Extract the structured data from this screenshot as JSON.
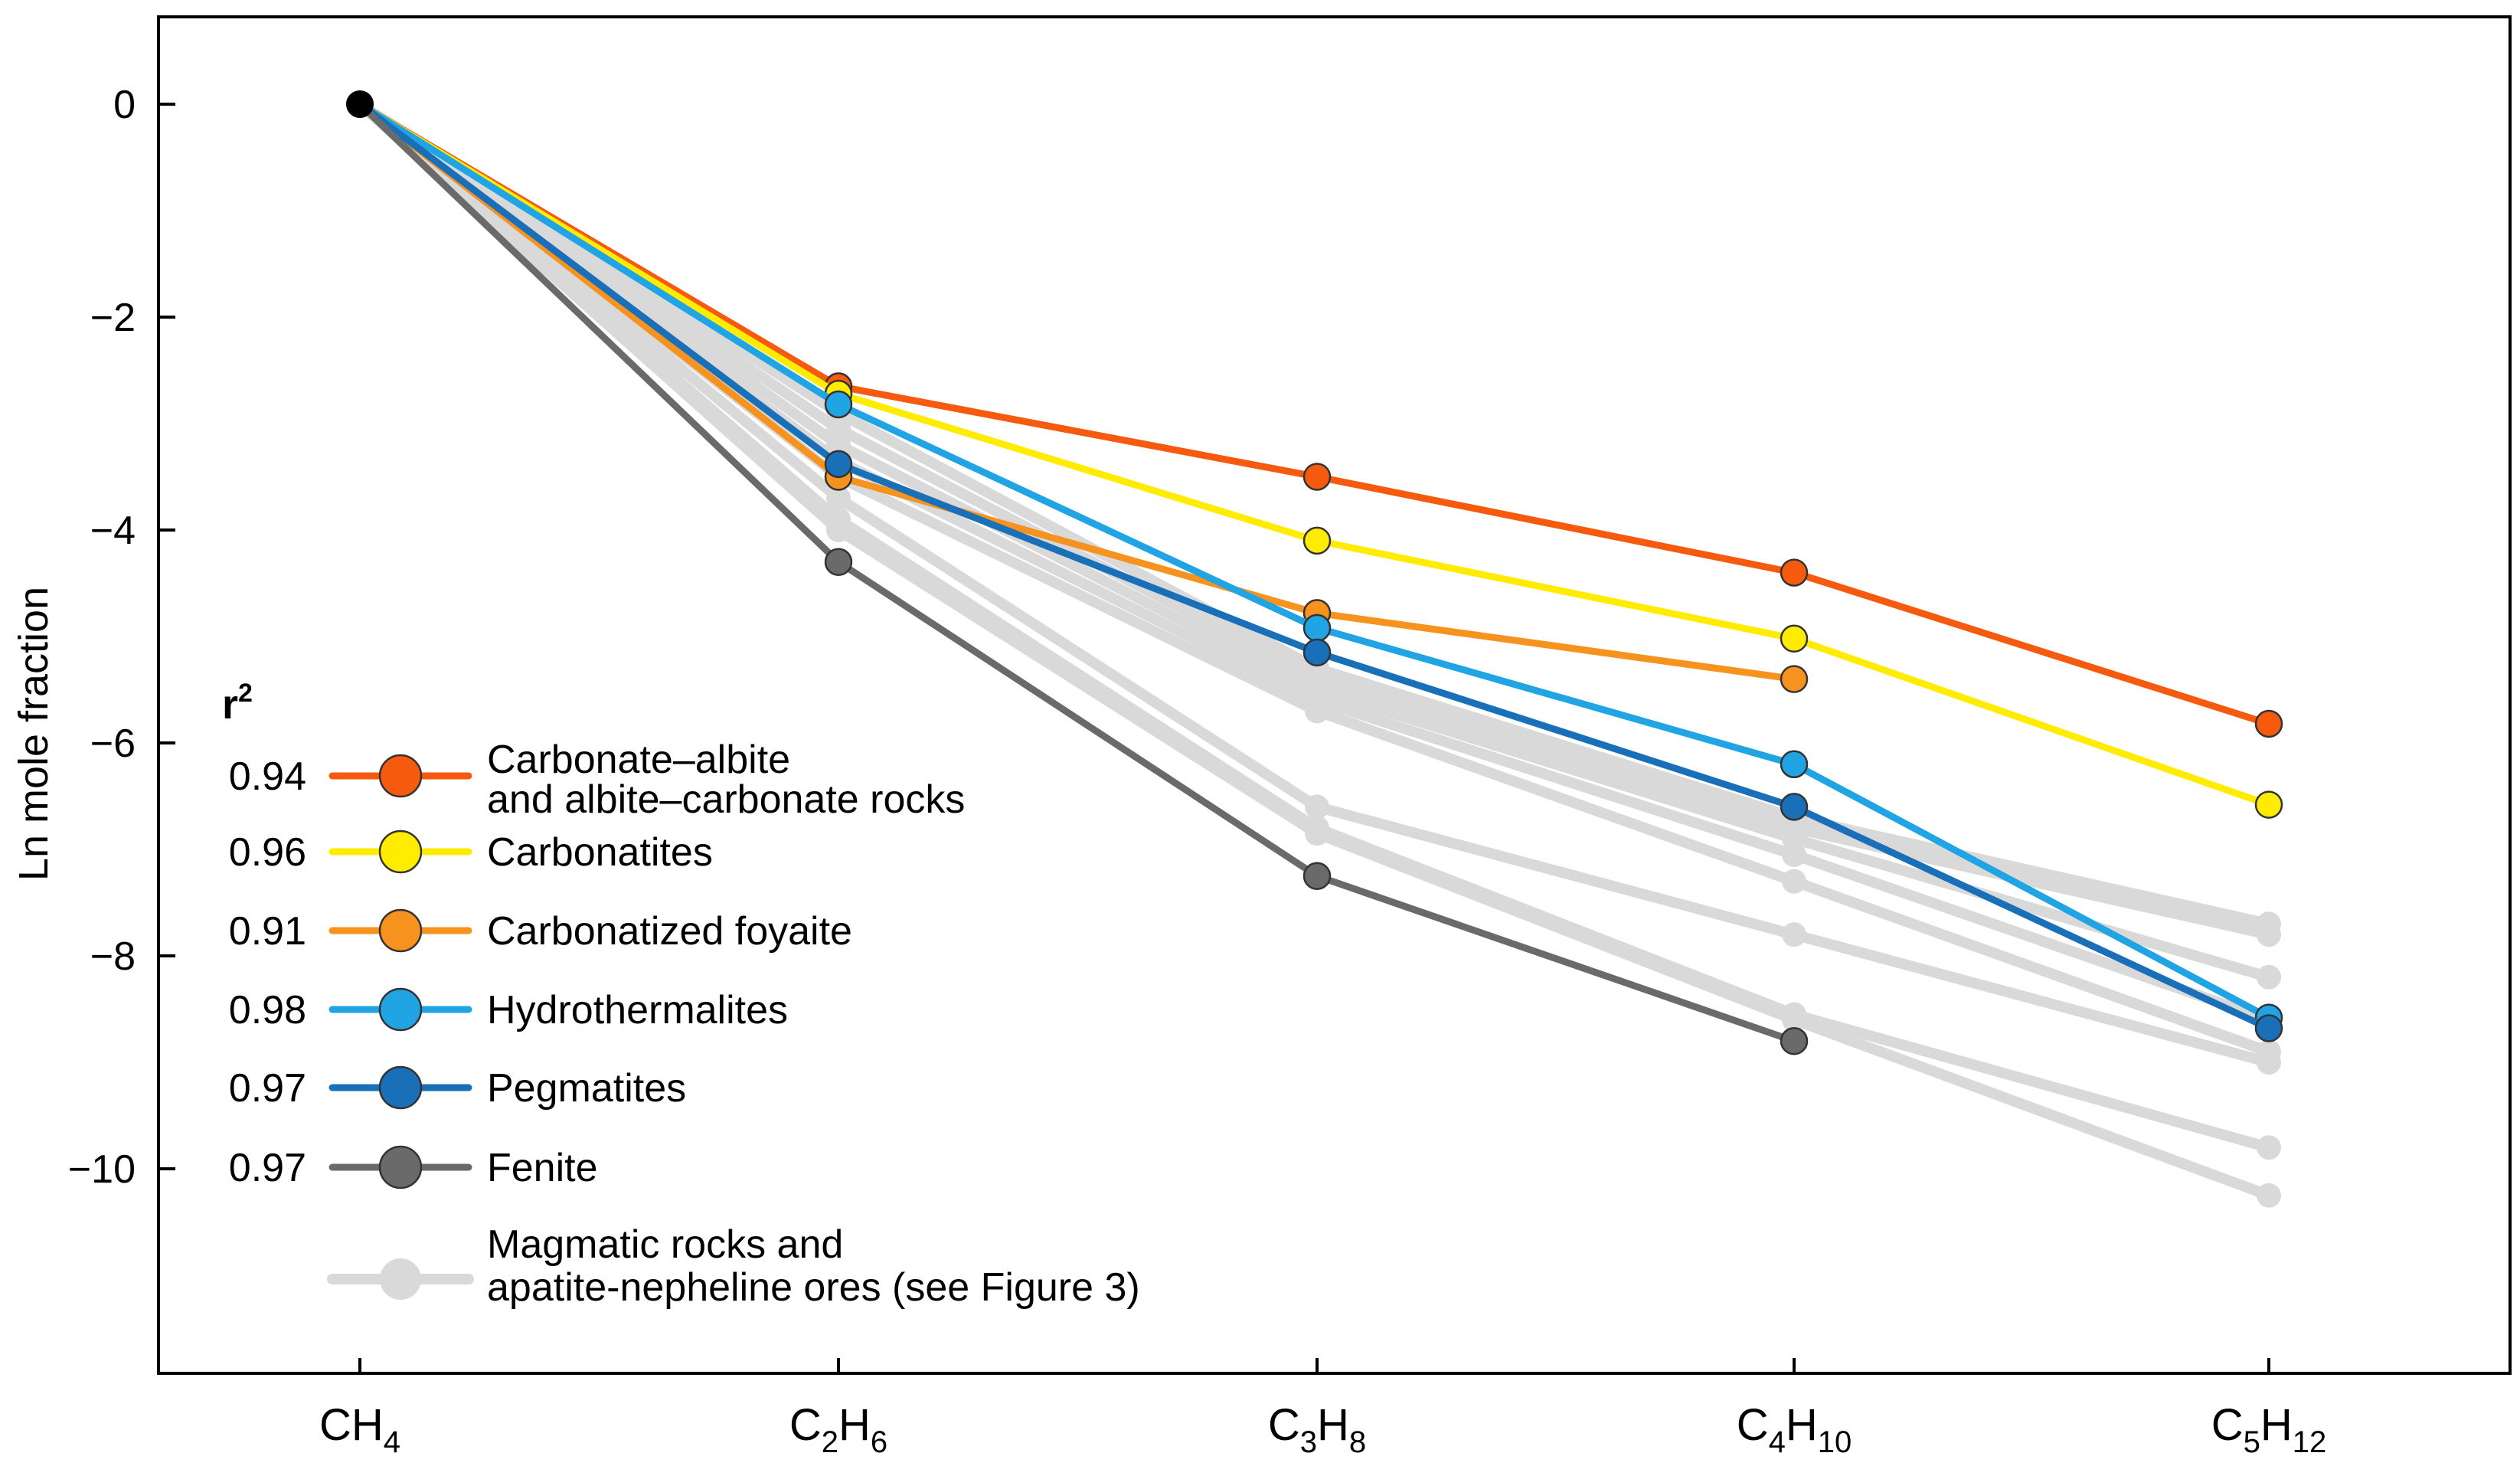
{
  "chart_data": {
    "type": "line",
    "title": "",
    "xlabel": "",
    "ylabel": "Ln mole fraction",
    "ylim": [
      -11.8,
      0.8
    ],
    "yticks": [
      0,
      -2,
      -4,
      -6,
      -8,
      -10
    ],
    "ytick_labels": [
      "0",
      "−2",
      "−4",
      "−6",
      "−8",
      "−10"
    ],
    "categories": [
      {
        "base": "CH",
        "sub": "4",
        "id": "ch4"
      },
      {
        "base": "C",
        "sub": "2",
        "base2": "H",
        "sub2": "6",
        "id": "c2h6"
      },
      {
        "base": "C",
        "sub": "3",
        "base2": "H",
        "sub2": "8",
        "id": "c3h8"
      },
      {
        "base": "C",
        "sub": "4",
        "base2": "H",
        "sub2": "10",
        "id": "c4h10"
      },
      {
        "base": "C",
        "sub": "5",
        "base2": "H",
        "sub2": "12",
        "id": "c5h12"
      }
    ],
    "legend_header": "r",
    "legend_header_sup": "2",
    "legend_position": "left-middle",
    "background_series": {
      "color": "#d9d9d9",
      "series": [
        [
          0,
          -2.9,
          -5.3,
          -6.7,
          -7.7
        ],
        [
          0,
          -3.05,
          -5.4,
          -6.8,
          -7.8
        ],
        [
          0,
          -3.2,
          -5.5,
          -6.9,
          -8.2
        ],
        [
          0,
          -3.35,
          -5.6,
          -7.05,
          -8.6
        ],
        [
          0,
          -3.5,
          -5.7,
          -7.3,
          -8.9
        ],
        [
          0,
          -3.7,
          -6.6,
          -7.8,
          -9.0
        ],
        [
          0,
          -3.9,
          -6.8,
          -8.55,
          -9.8
        ],
        [
          0,
          -4.0,
          -6.85,
          -8.6,
          -10.25
        ]
      ]
    },
    "series": [
      {
        "name": "Carbonate–albite and albite–carbonate rocks",
        "label_lines": [
          "Carbonate–albite",
          "and albite–carbonate rocks"
        ],
        "r2": "0.94",
        "color": "#f55a0f",
        "values": [
          0,
          -2.65,
          -3.5,
          -4.4,
          -5.82
        ]
      },
      {
        "name": "Carbonatites",
        "label_lines": [
          "Carbonatites"
        ],
        "r2": "0.96",
        "color": "#ffec00",
        "values": [
          0,
          -2.72,
          -4.1,
          -5.02,
          -6.58
        ]
      },
      {
        "name": "Carbonatized foyaite",
        "label_lines": [
          "Carbonatized foyaite"
        ],
        "r2": "0.91",
        "color": "#f6921e",
        "values": [
          0,
          -3.5,
          -4.78,
          -5.4,
          null
        ]
      },
      {
        "name": "Hydrothermalites",
        "label_lines": [
          "Hydrothermalites"
        ],
        "r2": "0.98",
        "color": "#20a4e4",
        "values": [
          0,
          -2.82,
          -4.92,
          -6.2,
          -8.58
        ]
      },
      {
        "name": "Pegmatites",
        "label_lines": [
          "Pegmatites"
        ],
        "r2": "0.97",
        "color": "#1970b8",
        "values": [
          0,
          -3.38,
          -5.15,
          -6.6,
          -8.68
        ]
      },
      {
        "name": "Fenite",
        "label_lines": [
          "Fenite"
        ],
        "r2": "0.97",
        "color": "#6a6a6a",
        "values": [
          0,
          -4.3,
          -7.25,
          -8.8,
          null
        ]
      }
    ],
    "background_legend": {
      "label_lines": [
        "Magmatic rocks and",
        "apatite-nepheline ores (see Figure 3)"
      ],
      "color": "#d9d9d9"
    },
    "origin_marker_color": "#000000"
  }
}
